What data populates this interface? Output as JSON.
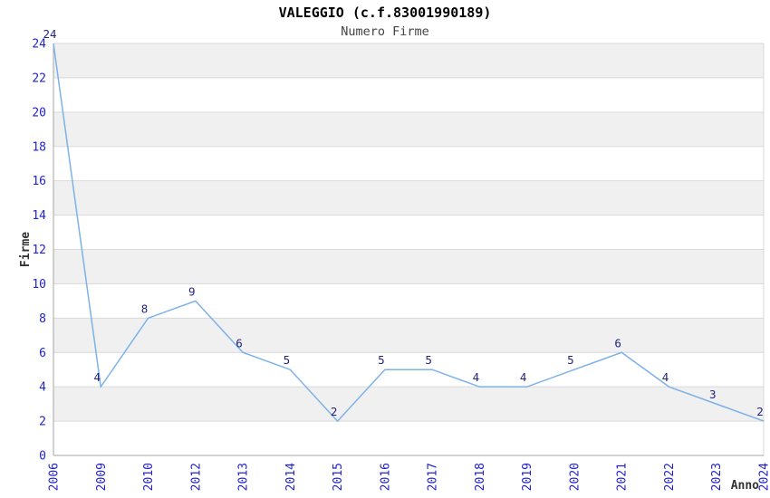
{
  "header": {
    "title": "VALEGGIO (c.f.83001990189)",
    "subtitle": "Numero Firme"
  },
  "chart_data": {
    "type": "line",
    "title": "VALEGGIO (c.f.83001990189)",
    "subtitle": "Numero Firme",
    "xlabel": "Anno",
    "ylabel": "Firme",
    "categories": [
      "2006",
      "2009",
      "2010",
      "2012",
      "2013",
      "2014",
      "2015",
      "2016",
      "2017",
      "2018",
      "2019",
      "2020",
      "2021",
      "2022",
      "2023",
      "2024"
    ],
    "values": [
      24,
      4,
      8,
      9,
      6,
      5,
      2,
      5,
      5,
      4,
      4,
      5,
      6,
      4,
      3,
      2
    ],
    "ylim": [
      0,
      24
    ],
    "ytick_step": 2,
    "yticks": [
      0,
      2,
      4,
      6,
      8,
      10,
      12,
      14,
      16,
      18,
      20,
      22,
      24
    ],
    "grid": true,
    "plot_bands": "alternating horizontal bands every 2 units, gray on 2-4, 6-8, 10-12, 14-16, 18-20, 22-24",
    "data_labels_visible": true,
    "legend": "none",
    "markers": "none"
  },
  "colors": {
    "line": "#7db2e8",
    "tick_label": "#2222cc",
    "data_label": "#23237f",
    "band_gray": "#f0f0f0",
    "grid_line": "#d9d9d9",
    "axis_line": "#a6a6a6",
    "title": "#000000",
    "subtitle": "#444444",
    "axis_title": "#333333",
    "background": "#ffffff"
  }
}
